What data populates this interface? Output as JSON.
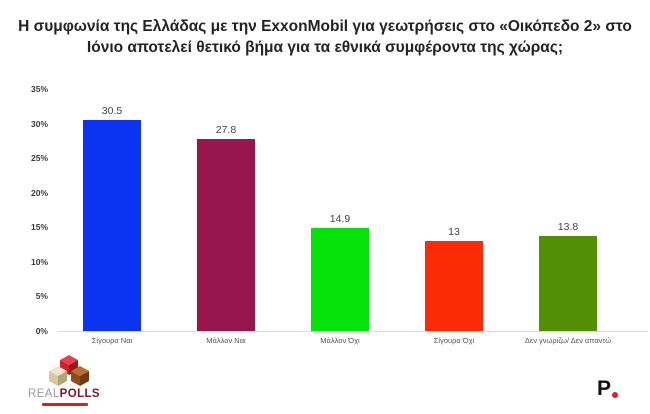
{
  "title": "Η συμφωνία της Ελλάδας με την ExxonMobil για γεωτρήσεις στο «Οικόπεδο 2» στο Ιόνιο αποτελεί θετικό βήμα για τα εθνικά συμφέροντα της χώρας;",
  "chart_data": {
    "type": "bar",
    "title": "Η συμφωνία της Ελλάδας με την ExxonMobil για γεωτρήσεις στο «Οικόπεδο 2» στο Ιόνιο αποτελεί θετικό βήμα για τα εθνικά συμφέροντα της χώρας;",
    "categories": [
      "Σίγουρα Ναι",
      "Μάλλον Ναι",
      "Μάλλον Όχι",
      "Σίγουρα Όχι",
      "Δεν γνωρίζω/ Δεν απαντώ"
    ],
    "values": [
      30.5,
      27.8,
      14.9,
      13,
      13.8
    ],
    "bar_colors": [
      "#0d33f2",
      "#97164e",
      "#05e20a",
      "#fc2b07",
      "#538f04"
    ],
    "xlabel": "",
    "ylabel": "",
    "ylim": [
      0,
      35
    ],
    "ytick_labels": [
      "0%",
      "5%",
      "10%",
      "15%",
      "20%",
      "25%",
      "30%",
      "35%"
    ],
    "ytick_values": [
      0,
      5,
      10,
      15,
      20,
      25,
      30,
      35
    ],
    "grid": false,
    "legend": false
  },
  "footer": {
    "realpolls_real": "REAL",
    "realpolls_polls": "POLLS",
    "protagon_p": "P"
  }
}
